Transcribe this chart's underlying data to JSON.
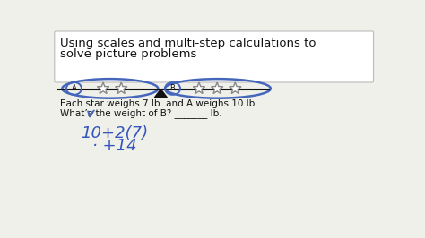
{
  "title_line1": "Using scales and multi-step calculations to",
  "title_line2": "solve picture problems",
  "title_box_color": "#ffffff",
  "title_border_color": "#bbbbbb",
  "title_fontsize": 9.5,
  "label_A": "A",
  "label_B": "B",
  "scale_bar_color": "#111111",
  "scale_triangle_color": "#111111",
  "ellipse_color": "#4466bb",
  "star_edge_color": "#888888",
  "star_face_color": "#ffffff",
  "question_line1": "Each star weighs 7 lb. and A weighs 10 lb.",
  "question_line2": "What’s the weight of B? _______ lb.",
  "calc_line1": "10+2(7)",
  "calc_line2": "· +14",
  "calc_color": "#3355bb",
  "text_color": "#111111",
  "bg_color": "#f0f0eb",
  "arrow_color": "#4466bb"
}
